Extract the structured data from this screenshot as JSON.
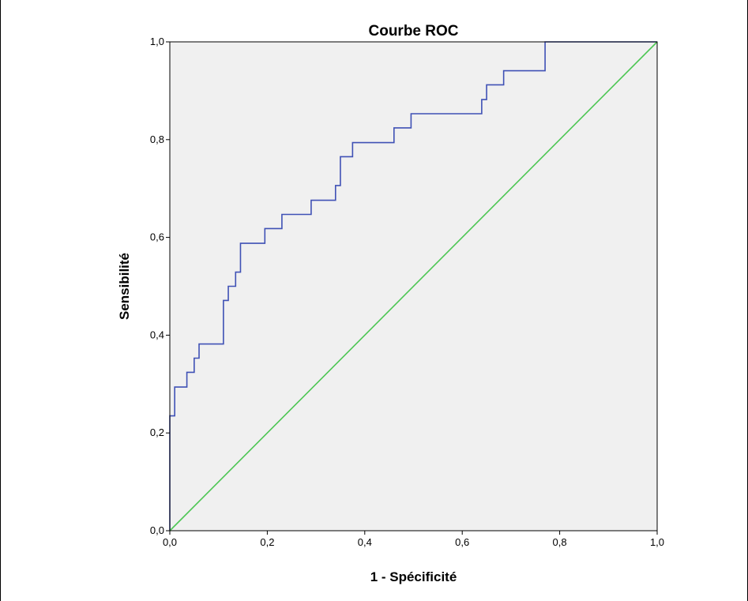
{
  "chart_data": {
    "type": "line",
    "title": "Courbe ROC",
    "xlabel": "1 - Spécificité",
    "ylabel": "Sensibilité",
    "xlim": [
      0,
      1
    ],
    "ylim": [
      0,
      1
    ],
    "x_ticks": [
      "0,0",
      "0,2",
      "0,4",
      "0,6",
      "0,8",
      "1,0"
    ],
    "y_ticks": [
      "0,0",
      "0,2",
      "0,4",
      "0,6",
      "0,8",
      "1,0"
    ],
    "grid": false,
    "background_color": "#f0f0f0",
    "series": [
      {
        "color": "#3f51b5",
        "style": "step",
        "x": [
          0,
          0,
          0.01,
          0.01,
          0.035,
          0.035,
          0.05,
          0.05,
          0.06,
          0.06,
          0.11,
          0.11,
          0.12,
          0.12,
          0.135,
          0.135,
          0.145,
          0.145,
          0.195,
          0.195,
          0.23,
          0.23,
          0.29,
          0.29,
          0.34,
          0.34,
          0.35,
          0.35,
          0.375,
          0.375,
          0.46,
          0.46,
          0.495,
          0.495,
          0.64,
          0.64,
          0.65,
          0.65,
          0.685,
          0.685,
          0.77,
          0.77,
          1.0
        ],
        "y": [
          0,
          0.235,
          0.235,
          0.294,
          0.294,
          0.324,
          0.324,
          0.353,
          0.353,
          0.382,
          0.382,
          0.471,
          0.471,
          0.5,
          0.5,
          0.529,
          0.529,
          0.588,
          0.588,
          0.618,
          0.618,
          0.647,
          0.647,
          0.676,
          0.676,
          0.706,
          0.706,
          0.765,
          0.765,
          0.794,
          0.794,
          0.824,
          0.824,
          0.853,
          0.853,
          0.882,
          0.882,
          0.912,
          0.912,
          0.941,
          0.941,
          1.0,
          1.0
        ]
      },
      {
        "color": "#4cc653",
        "style": "line",
        "x": [
          0,
          1
        ],
        "y": [
          0,
          1
        ]
      }
    ]
  }
}
